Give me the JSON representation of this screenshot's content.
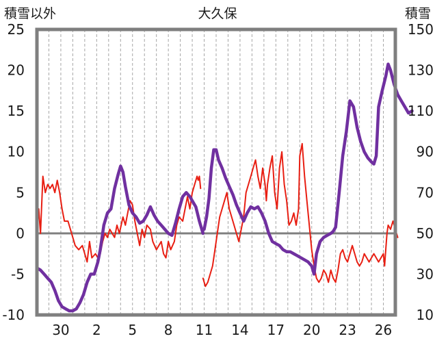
{
  "chart_data": {
    "type": "line",
    "title": "大久保",
    "ylabel_left": "積雪以外",
    "ylabel_right": "積雪",
    "y_left": {
      "min": -10,
      "max": 25,
      "ticks": [
        25,
        20,
        15,
        10,
        5,
        0,
        -5,
        -10
      ]
    },
    "y_right": {
      "min": 10,
      "max": 150,
      "ticks": [
        150,
        130,
        110,
        90,
        70,
        50,
        30,
        10
      ]
    },
    "x": {
      "min": 28,
      "max": 58,
      "tick_values": [
        30,
        33,
        36,
        39,
        42,
        45,
        48,
        51,
        54,
        57
      ],
      "tick_labels": [
        "30",
        "2",
        "5",
        "8",
        "11",
        "14",
        "17",
        "20",
        "23",
        "26"
      ]
    },
    "grid_vertical_every": 1,
    "zero_line": true,
    "colors": {
      "red_series": "#e81e12",
      "purple_series": "#7030a0",
      "frame": "#7f7f7f",
      "grid": "#a6a6a6"
    },
    "series": [
      {
        "axis": "left",
        "color": "#e81e12",
        "segments": [
          [
            [
              28.0,
              0
            ],
            [
              28.15,
              3
            ],
            [
              28.3,
              0
            ],
            [
              28.5,
              7
            ],
            [
              28.7,
              5
            ],
            [
              28.9,
              6
            ],
            [
              29.1,
              5.5
            ],
            [
              29.3,
              6
            ],
            [
              29.5,
              5
            ],
            [
              29.7,
              6.5
            ],
            [
              29.9,
              5
            ],
            [
              30.1,
              3
            ],
            [
              30.3,
              1.5
            ],
            [
              30.6,
              1.5
            ],
            [
              30.9,
              0
            ],
            [
              31.2,
              -1.5
            ],
            [
              31.5,
              -2
            ],
            [
              31.8,
              -1.5
            ],
            [
              32.0,
              -2.5
            ],
            [
              32.2,
              -3.5
            ],
            [
              32.4,
              -1
            ],
            [
              32.6,
              -3
            ],
            [
              32.9,
              -2.5
            ],
            [
              33.1,
              -3
            ],
            [
              33.3,
              -2.5
            ],
            [
              33.5,
              -1
            ],
            [
              33.7,
              0
            ],
            [
              33.9,
              -0.5
            ],
            [
              34.1,
              0.5
            ],
            [
              34.3,
              0
            ],
            [
              34.5,
              -0.5
            ],
            [
              34.7,
              1
            ],
            [
              34.9,
              0
            ],
            [
              35.2,
              2
            ],
            [
              35.4,
              1
            ],
            [
              35.6,
              2.5
            ],
            [
              35.8,
              4
            ],
            [
              36.0,
              3.5
            ],
            [
              36.2,
              1.5
            ],
            [
              36.4,
              0
            ],
            [
              36.6,
              -1.5
            ],
            [
              36.8,
              0.5
            ],
            [
              37.0,
              -0.5
            ],
            [
              37.2,
              1
            ],
            [
              37.5,
              0.5
            ],
            [
              37.7,
              -1
            ],
            [
              38.0,
              -2
            ],
            [
              38.2,
              -1.5
            ],
            [
              38.4,
              -1
            ],
            [
              38.6,
              -2.5
            ],
            [
              38.8,
              -3
            ],
            [
              39.0,
              -1
            ],
            [
              39.2,
              -2
            ],
            [
              39.5,
              -1
            ],
            [
              39.7,
              1
            ],
            [
              39.9,
              2
            ],
            [
              40.2,
              1.5
            ],
            [
              40.4,
              3
            ],
            [
              40.6,
              4.5
            ],
            [
              40.8,
              3
            ],
            [
              41.0,
              5
            ],
            [
              41.2,
              6
            ],
            [
              41.4,
              7
            ],
            [
              41.5,
              6.5
            ],
            [
              41.6,
              7
            ],
            [
              41.7,
              5.5
            ]
          ],
          [
            [
              41.9,
              -5.5
            ],
            [
              42.1,
              -6.5
            ],
            [
              42.3,
              -6
            ],
            [
              42.5,
              -5
            ],
            [
              42.7,
              -4
            ],
            [
              42.9,
              -2
            ],
            [
              43.1,
              0
            ],
            [
              43.3,
              2
            ],
            [
              43.5,
              3
            ],
            [
              43.7,
              4
            ],
            [
              43.9,
              5
            ],
            [
              44.1,
              3
            ],
            [
              44.3,
              2
            ],
            [
              44.5,
              1
            ],
            [
              44.7,
              0
            ],
            [
              44.9,
              -1
            ],
            [
              45.1,
              0.5
            ],
            [
              45.3,
              2
            ],
            [
              45.5,
              5
            ],
            [
              45.7,
              6
            ],
            [
              45.9,
              7
            ],
            [
              46.1,
              8
            ],
            [
              46.3,
              9
            ],
            [
              46.5,
              7
            ],
            [
              46.7,
              5.5
            ],
            [
              46.9,
              8
            ],
            [
              47.1,
              6
            ],
            [
              47.2,
              4
            ],
            [
              47.3,
              6
            ],
            [
              47.5,
              8
            ],
            [
              47.7,
              9.5
            ],
            [
              47.9,
              5
            ],
            [
              48.1,
              3
            ],
            [
              48.3,
              8
            ],
            [
              48.5,
              10
            ],
            [
              48.7,
              6
            ],
            [
              48.9,
              4
            ],
            [
              49.1,
              1
            ],
            [
              49.3,
              1.5
            ],
            [
              49.5,
              2.5
            ],
            [
              49.7,
              1
            ],
            [
              49.9,
              3
            ],
            [
              50.0,
              9.5
            ],
            [
              50.2,
              11
            ],
            [
              50.4,
              7
            ],
            [
              50.6,
              4
            ],
            [
              50.8,
              1
            ],
            [
              51.0,
              -2
            ],
            [
              51.2,
              -4
            ],
            [
              51.4,
              -5.5
            ],
            [
              51.6,
              -6
            ],
            [
              51.8,
              -5.5
            ],
            [
              52.0,
              -4.5
            ],
            [
              52.2,
              -5
            ],
            [
              52.4,
              -6
            ],
            [
              52.6,
              -4.5
            ],
            [
              52.8,
              -5.5
            ],
            [
              53.0,
              -6
            ],
            [
              53.2,
              -4.5
            ],
            [
              53.4,
              -2.5
            ],
            [
              53.6,
              -2
            ],
            [
              53.8,
              -3
            ],
            [
              54.0,
              -3.5
            ],
            [
              54.2,
              -2.5
            ],
            [
              54.4,
              -1.5
            ],
            [
              54.6,
              -2.5
            ],
            [
              54.8,
              -3.5
            ],
            [
              55.0,
              -4
            ],
            [
              55.2,
              -3.5
            ],
            [
              55.4,
              -2.5
            ],
            [
              55.6,
              -3
            ],
            [
              55.8,
              -3.5
            ],
            [
              56.0,
              -3
            ],
            [
              56.2,
              -2.5
            ],
            [
              56.4,
              -3
            ],
            [
              56.6,
              -3.5
            ],
            [
              56.8,
              -3
            ],
            [
              57.0,
              -2.5
            ],
            [
              57.1,
              -4
            ],
            [
              57.2,
              -2
            ],
            [
              57.3,
              0
            ],
            [
              57.4,
              1
            ],
            [
              57.6,
              0.5
            ],
            [
              57.8,
              1.5
            ],
            [
              58.0,
              0.5
            ],
            [
              58.2,
              -0.5
            ]
          ]
        ]
      },
      {
        "axis": "right",
        "color": "#7030a0",
        "segments": [
          [
            [
              28.0,
              33
            ],
            [
              28.3,
              32
            ],
            [
              28.6,
              30
            ],
            [
              28.9,
              28
            ],
            [
              29.2,
              26
            ],
            [
              29.5,
              22
            ],
            [
              29.8,
              17
            ],
            [
              30.1,
              14
            ],
            [
              30.4,
              13
            ],
            [
              30.7,
              12
            ],
            [
              31.0,
              12
            ],
            [
              31.3,
              13
            ],
            [
              31.6,
              16
            ],
            [
              31.9,
              20
            ],
            [
              32.2,
              26
            ],
            [
              32.5,
              30
            ],
            [
              32.8,
              30
            ],
            [
              33.1,
              36
            ],
            [
              33.3,
              42
            ],
            [
              33.6,
              54
            ],
            [
              33.9,
              60
            ],
            [
              34.2,
              62
            ],
            [
              34.5,
              72
            ],
            [
              34.8,
              79
            ],
            [
              35.0,
              83
            ],
            [
              35.2,
              80
            ],
            [
              35.4,
              73
            ],
            [
              35.7,
              64
            ],
            [
              36.0,
              60
            ],
            [
              36.3,
              58
            ],
            [
              36.6,
              55
            ],
            [
              36.9,
              56
            ],
            [
              37.2,
              59
            ],
            [
              37.5,
              63
            ],
            [
              37.8,
              59
            ],
            [
              38.1,
              56
            ],
            [
              38.4,
              54
            ],
            [
              38.7,
              52
            ],
            [
              39.0,
              50
            ],
            [
              39.3,
              49
            ],
            [
              39.6,
              55
            ],
            [
              39.9,
              62
            ],
            [
              40.2,
              68
            ],
            [
              40.5,
              70
            ],
            [
              40.8,
              68
            ],
            [
              41.0,
              66
            ],
            [
              41.3,
              63
            ],
            [
              41.6,
              56
            ],
            [
              41.9,
              50
            ]
          ],
          [
            [
              42.0,
              52
            ],
            [
              42.2,
              58
            ],
            [
              42.4,
              67
            ],
            [
              42.6,
              82
            ],
            [
              42.8,
              91
            ],
            [
              43.0,
              91
            ],
            [
              43.2,
              86
            ],
            [
              43.5,
              82
            ],
            [
              43.8,
              77
            ],
            [
              44.1,
              73
            ],
            [
              44.4,
              69
            ],
            [
              44.7,
              64
            ],
            [
              45.0,
              60
            ],
            [
              45.3,
              56
            ],
            [
              45.6,
              60
            ],
            [
              45.9,
              63
            ],
            [
              46.2,
              62
            ],
            [
              46.5,
              63
            ],
            [
              46.8,
              60
            ],
            [
              47.1,
              56
            ],
            [
              47.4,
              50
            ],
            [
              47.7,
              46
            ],
            [
              48.0,
              45
            ],
            [
              48.3,
              44
            ],
            [
              48.6,
              42
            ],
            [
              48.9,
              41
            ],
            [
              49.2,
              41
            ],
            [
              49.5,
              40
            ],
            [
              49.8,
              39
            ],
            [
              50.1,
              38
            ],
            [
              50.4,
              37
            ],
            [
              50.7,
              36
            ],
            [
              51.0,
              34
            ],
            [
              51.2,
              30
            ],
            [
              51.4,
              40
            ],
            [
              51.7,
              46
            ],
            [
              52.0,
              48
            ],
            [
              52.3,
              49
            ],
            [
              52.6,
              50
            ],
            [
              52.8,
              51
            ],
            [
              53.0,
              53
            ],
            [
              53.3,
              70
            ],
            [
              53.6,
              88
            ],
            [
              53.9,
              100
            ],
            [
              54.2,
              115
            ],
            [
              54.5,
              112
            ],
            [
              54.8,
              102
            ],
            [
              55.1,
              95
            ],
            [
              55.4,
              90
            ],
            [
              55.7,
              87
            ],
            [
              56.0,
              85
            ],
            [
              56.2,
              84
            ],
            [
              56.4,
              88
            ],
            [
              56.6,
              112
            ],
            [
              56.9,
              120
            ],
            [
              57.2,
              127
            ],
            [
              57.4,
              133
            ],
            [
              57.6,
              130
            ],
            [
              57.9,
              123
            ],
            [
              58.2,
              118
            ],
            [
              58.5,
              115
            ],
            [
              58.8,
              112
            ],
            [
              59.1,
              109
            ],
            [
              59.4,
              110
            ]
          ]
        ]
      }
    ]
  }
}
